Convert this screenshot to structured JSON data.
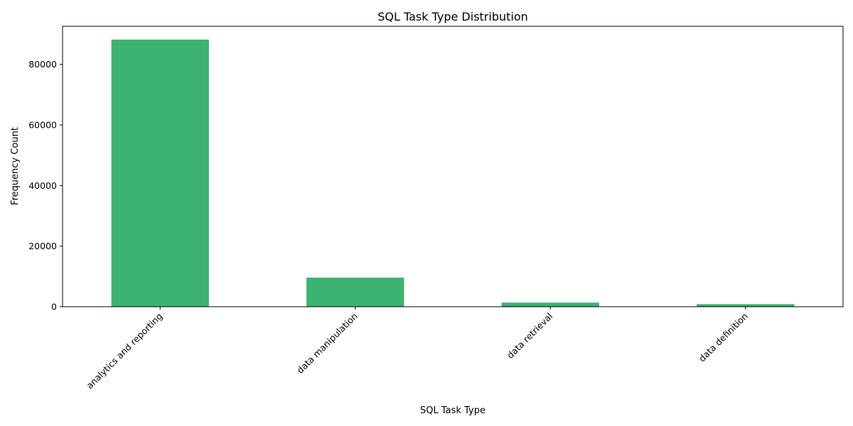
{
  "chart_data": {
    "type": "bar",
    "title": "SQL Task Type Distribution",
    "xlabel": "SQL Task Type",
    "ylabel": "Frequency Count",
    "categories": [
      "analytics and reporting",
      "data manipulation",
      "data retrieval",
      "data definition"
    ],
    "values": [
      88200,
      9600,
      1350,
      850
    ],
    "ylim": [
      0,
      92600
    ],
    "yticks": [
      0,
      20000,
      40000,
      60000,
      80000
    ],
    "ytick_labels": [
      "0",
      "20000",
      "40000",
      "60000",
      "80000"
    ],
    "bar_color": "#3cb371",
    "grid": false,
    "legend": "none"
  }
}
